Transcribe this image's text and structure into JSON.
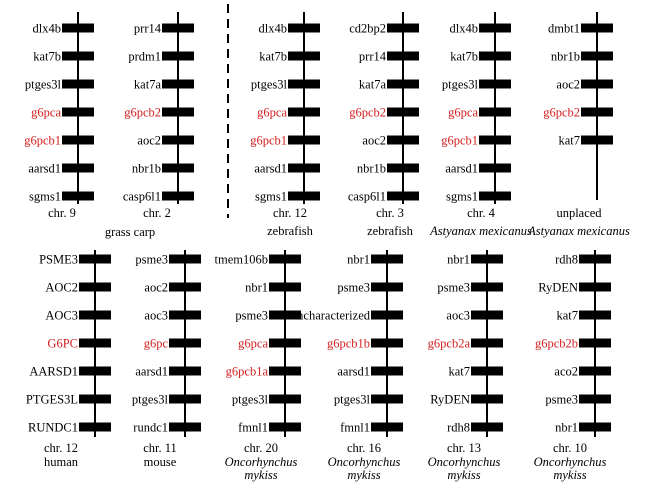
{
  "colors": {
    "text": "#000000",
    "highlight": "#d42020",
    "gene_block": "#000000"
  },
  "top_row": [
    {
      "chr_label": "chr. 9",
      "species_lines": [],
      "genes": [
        {
          "name": "dlx4b",
          "hl": false
        },
        {
          "name": "kat7b",
          "hl": false
        },
        {
          "name": "ptges3l",
          "hl": false
        },
        {
          "name": "g6pca",
          "hl": true
        },
        {
          "name": "g6pcb1",
          "hl": true
        },
        {
          "name": "aarsd1",
          "hl": false
        },
        {
          "name": "sgms1",
          "hl": false
        }
      ]
    },
    {
      "chr_label": "chr. 2",
      "species_lines": [],
      "genes": [
        {
          "name": "prr14",
          "hl": false
        },
        {
          "name": "prdm1",
          "hl": false
        },
        {
          "name": "kat7a",
          "hl": false
        },
        {
          "name": "g6pcb2",
          "hl": true
        },
        {
          "name": "aoc2",
          "hl": false
        },
        {
          "name": "nbr1b",
          "hl": false
        },
        {
          "name": "casp6l1",
          "hl": false
        }
      ]
    },
    {
      "chr_label": "chr. 12",
      "species_lines": [
        {
          "text": "zebrafish",
          "italic": false
        }
      ],
      "genes": [
        {
          "name": "dlx4b",
          "hl": false
        },
        {
          "name": "kat7b",
          "hl": false
        },
        {
          "name": "ptges3l",
          "hl": false
        },
        {
          "name": "g6pca",
          "hl": true
        },
        {
          "name": "g6pcb1",
          "hl": true
        },
        {
          "name": "aarsd1",
          "hl": false
        },
        {
          "name": "sgms1",
          "hl": false
        }
      ]
    },
    {
      "chr_label": "chr. 3",
      "species_lines": [
        {
          "text": "zebrafish",
          "italic": false
        }
      ],
      "genes": [
        {
          "name": "cd2bp2",
          "hl": false
        },
        {
          "name": "prr14",
          "hl": false
        },
        {
          "name": "kat7a",
          "hl": false
        },
        {
          "name": "g6pcb2",
          "hl": true
        },
        {
          "name": "aoc2",
          "hl": false
        },
        {
          "name": "nbr1b",
          "hl": false
        },
        {
          "name": "casp6l1",
          "hl": false
        }
      ]
    },
    {
      "chr_label": "chr. 4",
      "species_lines": [
        {
          "text": "Astyanax mexicanus",
          "italic": true
        }
      ],
      "genes": [
        {
          "name": "dlx4b",
          "hl": false
        },
        {
          "name": "kat7b",
          "hl": false
        },
        {
          "name": "ptges3l",
          "hl": false
        },
        {
          "name": "g6pca",
          "hl": true
        },
        {
          "name": "g6pcb1",
          "hl": true
        },
        {
          "name": "aarsd1",
          "hl": false
        },
        {
          "name": "sgms1",
          "hl": false
        }
      ]
    },
    {
      "chr_label": "unplaced",
      "species_lines": [
        {
          "text": "Astyanax mexicanus",
          "italic": true
        }
      ],
      "genes": [
        {
          "name": "dmbt1",
          "hl": false
        },
        {
          "name": "nbr1b",
          "hl": false
        },
        {
          "name": "aoc2",
          "hl": false
        },
        {
          "name": "g6pcb2",
          "hl": true
        },
        {
          "name": "kat7",
          "hl": false
        }
      ]
    }
  ],
  "grass_carp_label": "grass carp",
  "bottom_row": [
    {
      "chr_label": "chr. 12",
      "species_lines": [
        {
          "text": "human",
          "italic": false
        }
      ],
      "genes": [
        {
          "name": "PSME3",
          "hl": false
        },
        {
          "name": "AOC2",
          "hl": false
        },
        {
          "name": "AOC3",
          "hl": false
        },
        {
          "name": "G6PC",
          "hl": true
        },
        {
          "name": "AARSD1",
          "hl": false
        },
        {
          "name": "PTGES3L",
          "hl": false
        },
        {
          "name": "RUNDC1",
          "hl": false
        }
      ]
    },
    {
      "chr_label": "chr. 11",
      "species_lines": [
        {
          "text": "mouse",
          "italic": false
        }
      ],
      "genes": [
        {
          "name": "psme3",
          "hl": false
        },
        {
          "name": "aoc2",
          "hl": false
        },
        {
          "name": "aoc3",
          "hl": false
        },
        {
          "name": "g6pc",
          "hl": true
        },
        {
          "name": "aarsd1",
          "hl": false
        },
        {
          "name": "ptges3l",
          "hl": false
        },
        {
          "name": "rundc1",
          "hl": false
        }
      ]
    },
    {
      "chr_label": "chr. 20",
      "species_lines": [
        {
          "text": "Oncorhynchus",
          "italic": true
        },
        {
          "text": "mykiss",
          "italic": true
        }
      ],
      "genes": [
        {
          "name": "tmem106b",
          "hl": false
        },
        {
          "name": "nbr1",
          "hl": false
        },
        {
          "name": "psme3",
          "hl": false
        },
        {
          "name": "g6pca",
          "hl": true
        },
        {
          "name": "g6pcb1a",
          "hl": true
        },
        {
          "name": "ptges3l",
          "hl": false
        },
        {
          "name": "fmnl1",
          "hl": false
        }
      ]
    },
    {
      "chr_label": "chr. 16",
      "species_lines": [
        {
          "text": "Oncorhynchus",
          "italic": true
        },
        {
          "text": "mykiss",
          "italic": true
        }
      ],
      "genes": [
        {
          "name": "nbr1",
          "hl": false
        },
        {
          "name": "psme3",
          "hl": false
        },
        {
          "name": "uncharacterized",
          "hl": false
        },
        {
          "name": "g6pcb1b",
          "hl": true
        },
        {
          "name": "aarsd1",
          "hl": false
        },
        {
          "name": "ptges3l",
          "hl": false
        },
        {
          "name": "fmnl1",
          "hl": false
        }
      ]
    },
    {
      "chr_label": "chr. 13",
      "species_lines": [
        {
          "text": "Oncorhynchus",
          "italic": true
        },
        {
          "text": "mykiss",
          "italic": true
        }
      ],
      "genes": [
        {
          "name": "nbr1",
          "hl": false
        },
        {
          "name": "psme3",
          "hl": false
        },
        {
          "name": "aoc3",
          "hl": false
        },
        {
          "name": "g6pcb2a",
          "hl": true
        },
        {
          "name": "kat7",
          "hl": false
        },
        {
          "name": "RyDEN",
          "hl": false
        },
        {
          "name": "rdh8",
          "hl": false
        }
      ]
    },
    {
      "chr_label": "chr. 10",
      "species_lines": [
        {
          "text": "Oncorhynchus",
          "italic": true
        },
        {
          "text": "mykiss",
          "italic": true
        }
      ],
      "genes": [
        {
          "name": "rdh8",
          "hl": false
        },
        {
          "name": "RyDEN",
          "hl": false
        },
        {
          "name": "kat7",
          "hl": false
        },
        {
          "name": "g6pcb2b",
          "hl": true
        },
        {
          "name": "aco2",
          "hl": false
        },
        {
          "name": "psme3",
          "hl": false
        },
        {
          "name": "nbr1",
          "hl": false
        }
      ]
    }
  ]
}
